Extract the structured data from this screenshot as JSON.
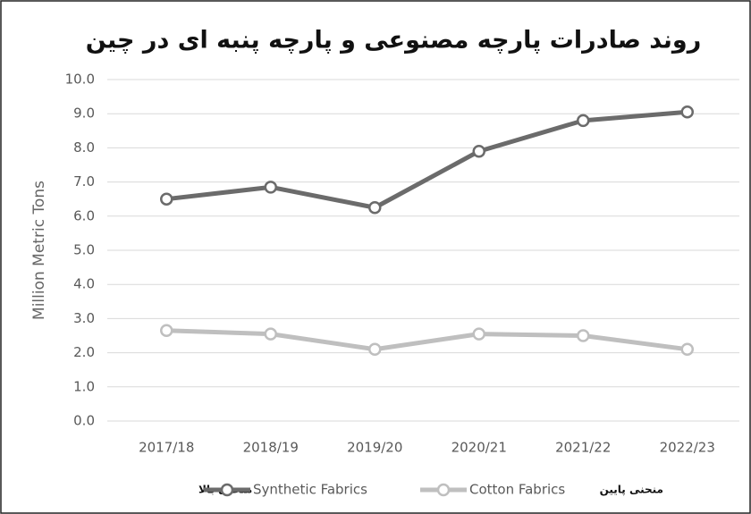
{
  "chart_data": {
    "type": "line",
    "title": "روند صادرات پارچه مصنوعی و پارچه پنبه ای در چین",
    "y_label": "Million Metric Tons",
    "categories": [
      "2017/18",
      "2018/19",
      "2019/20",
      "2020/21",
      "2021/22",
      "2022/23"
    ],
    "series": [
      {
        "name": "Synthetic Fabrics",
        "color": "#6b6b6b",
        "values": [
          6.5,
          6.85,
          6.25,
          7.9,
          8.8,
          9.05
        ]
      },
      {
        "name": "Cotton Fabrics",
        "color": "#bfbfbf",
        "values": [
          2.65,
          2.55,
          2.1,
          2.55,
          2.5,
          2.1
        ]
      }
    ],
    "annotations": [
      "منحنی بالا",
      "منحنی پایین"
    ],
    "ylim": [
      0,
      10
    ],
    "yticks": [
      {
        "value": 0,
        "label": "0.0"
      },
      {
        "value": 1,
        "label": "1.0"
      },
      {
        "value": 2,
        "label": "2.0"
      },
      {
        "value": 3,
        "label": "3.0"
      },
      {
        "value": 4,
        "label": "4.0"
      },
      {
        "value": 5,
        "label": "5.0"
      },
      {
        "value": 6,
        "label": "6.0"
      },
      {
        "value": 7,
        "label": "7.0"
      },
      {
        "value": 8,
        "label": "8.0"
      },
      {
        "value": 9,
        "label": "9.0"
      },
      {
        "value": 10,
        "label": "10.0"
      }
    ],
    "grid": true
  }
}
